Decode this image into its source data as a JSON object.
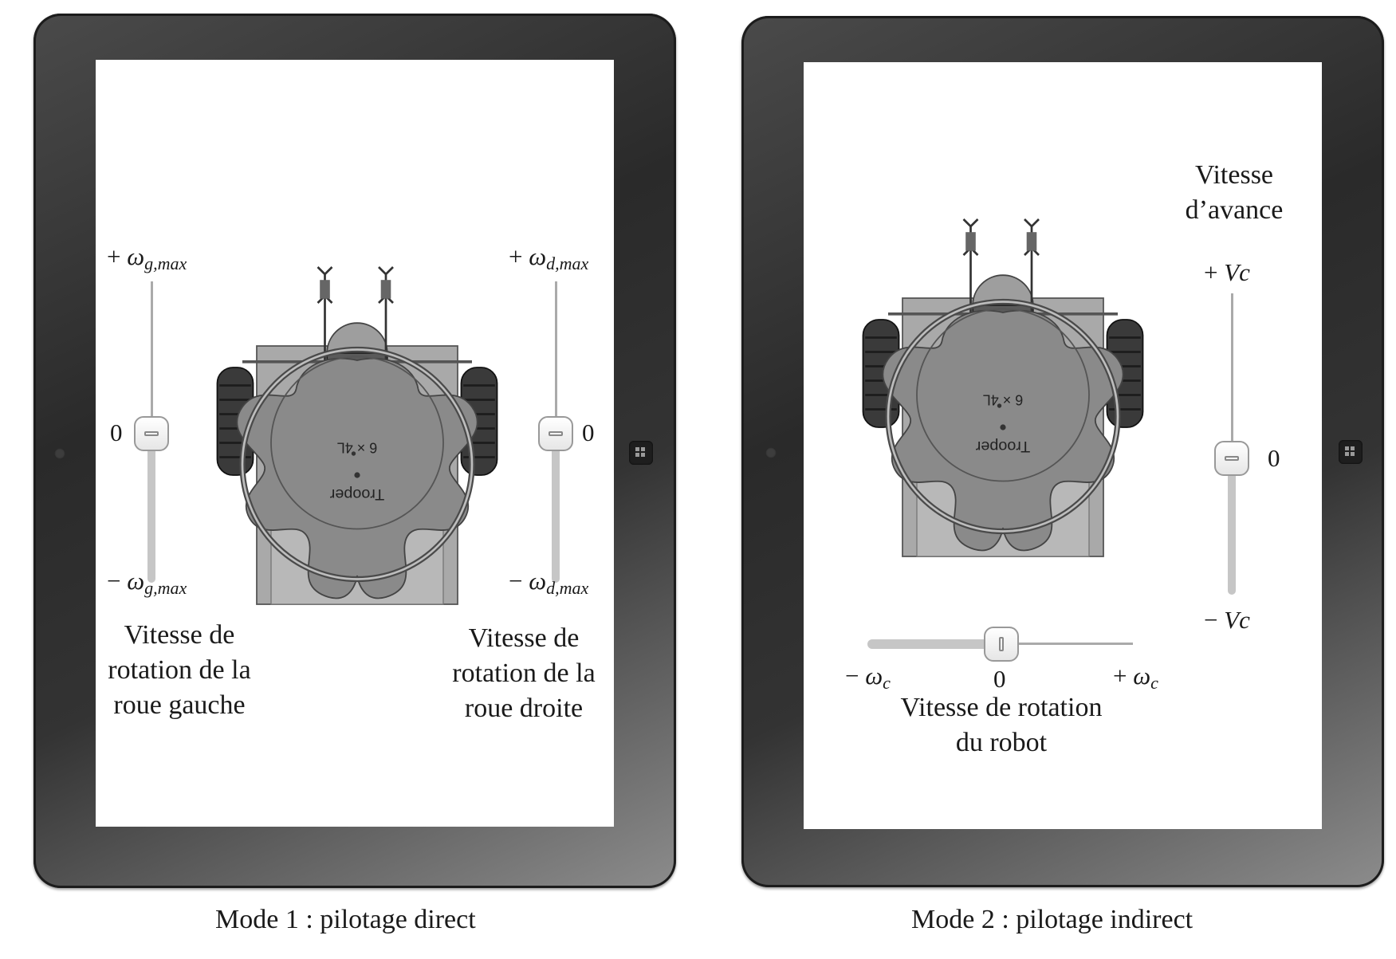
{
  "panels": [
    {
      "caption": "Mode 1 : pilotage direct",
      "left_slider": {
        "top_sign": "+ ",
        "top_sym": "ω",
        "top_sub": "g,max",
        "bottom_sign": "− ",
        "bottom_sym": "ω",
        "bottom_sub": "g,max",
        "zero": "0",
        "label_lines": [
          "Vitesse de",
          "rotation de la",
          "roue gauche"
        ]
      },
      "right_slider": {
        "top_sign": "+ ",
        "top_sym": "ω",
        "top_sub": "d,max",
        "bottom_sign": "− ",
        "bottom_sym": "ω",
        "bottom_sub": "d,max",
        "zero": "0",
        "label_lines": [
          "Vitesse de",
          "rotation de la",
          "roue droite"
        ]
      },
      "robot_text": {
        "brand": "Trooper",
        "model": "6 × 4L"
      }
    },
    {
      "caption": "Mode 2 : pilotage indirect",
      "vertical_slider": {
        "title_lines": [
          "Vitesse",
          "d’avance"
        ],
        "top_sign": "+ ",
        "top_sym": "Vc",
        "bottom_sign": "− ",
        "bottom_sym": "Vc",
        "zero": "0"
      },
      "horizontal_slider": {
        "left_sign": "− ",
        "left_sym": "ω",
        "left_sub": "c",
        "right_sign": "+ ",
        "right_sym": "ω",
        "right_sub": "c",
        "zero": "0",
        "label_lines": [
          "Vitesse de rotation",
          "du robot"
        ]
      },
      "robot_text": {
        "brand": "Trooper",
        "model": "6 × 4L"
      }
    }
  ]
}
